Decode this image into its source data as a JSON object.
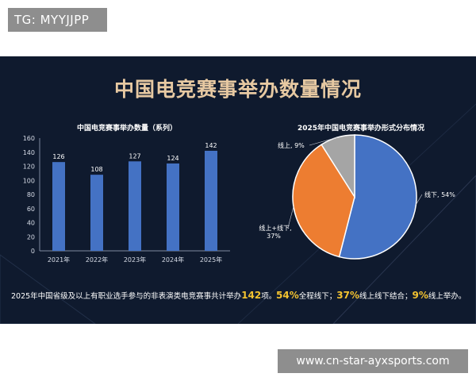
{
  "watermarks": {
    "top": "TG: MYYJJPP",
    "bottom": "www.cn-star-ayxsports.com"
  },
  "title": "中国电竞赛事举办数量情况",
  "colors": {
    "background": "#0f1a2e",
    "title": "#e7c9a2",
    "bar": "#4472c4",
    "highlight": "#f2c230"
  },
  "chart_data": [
    {
      "type": "bar",
      "title": "中国电竞赛事举办数量（系列）",
      "categories": [
        "2021年",
        "2022年",
        "2023年",
        "2024年",
        "2025年"
      ],
      "values": [
        126,
        108,
        127,
        124,
        142
      ],
      "ylim": [
        0,
        160
      ],
      "yticks": [
        0,
        20,
        40,
        60,
        80,
        100,
        120,
        140,
        160
      ],
      "grid": false,
      "color": "#4472c4"
    },
    {
      "type": "pie",
      "title": "2025年中国电竞赛事举办形式分布情况",
      "slices": [
        {
          "label": "线下, 54%",
          "value": 54,
          "color": "#4472c4"
        },
        {
          "label": "线上+线下, 37%",
          "value": 37,
          "color": "#ed7d31"
        },
        {
          "label": "线上, 9%",
          "value": 9,
          "color": "#a5a5a5"
        }
      ]
    }
  ],
  "summary_left": {
    "pre": "2025年中国省级及以上有职业选手参与的非表演类电竞赛事共计举办",
    "num": "142",
    "post": "项。"
  },
  "summary_right": {
    "p1": "54%",
    "t1": "全程线下；",
    "p2": "37%",
    "t2": "线上线下结合；",
    "p3": "9%",
    "t3": "线上举办。"
  }
}
